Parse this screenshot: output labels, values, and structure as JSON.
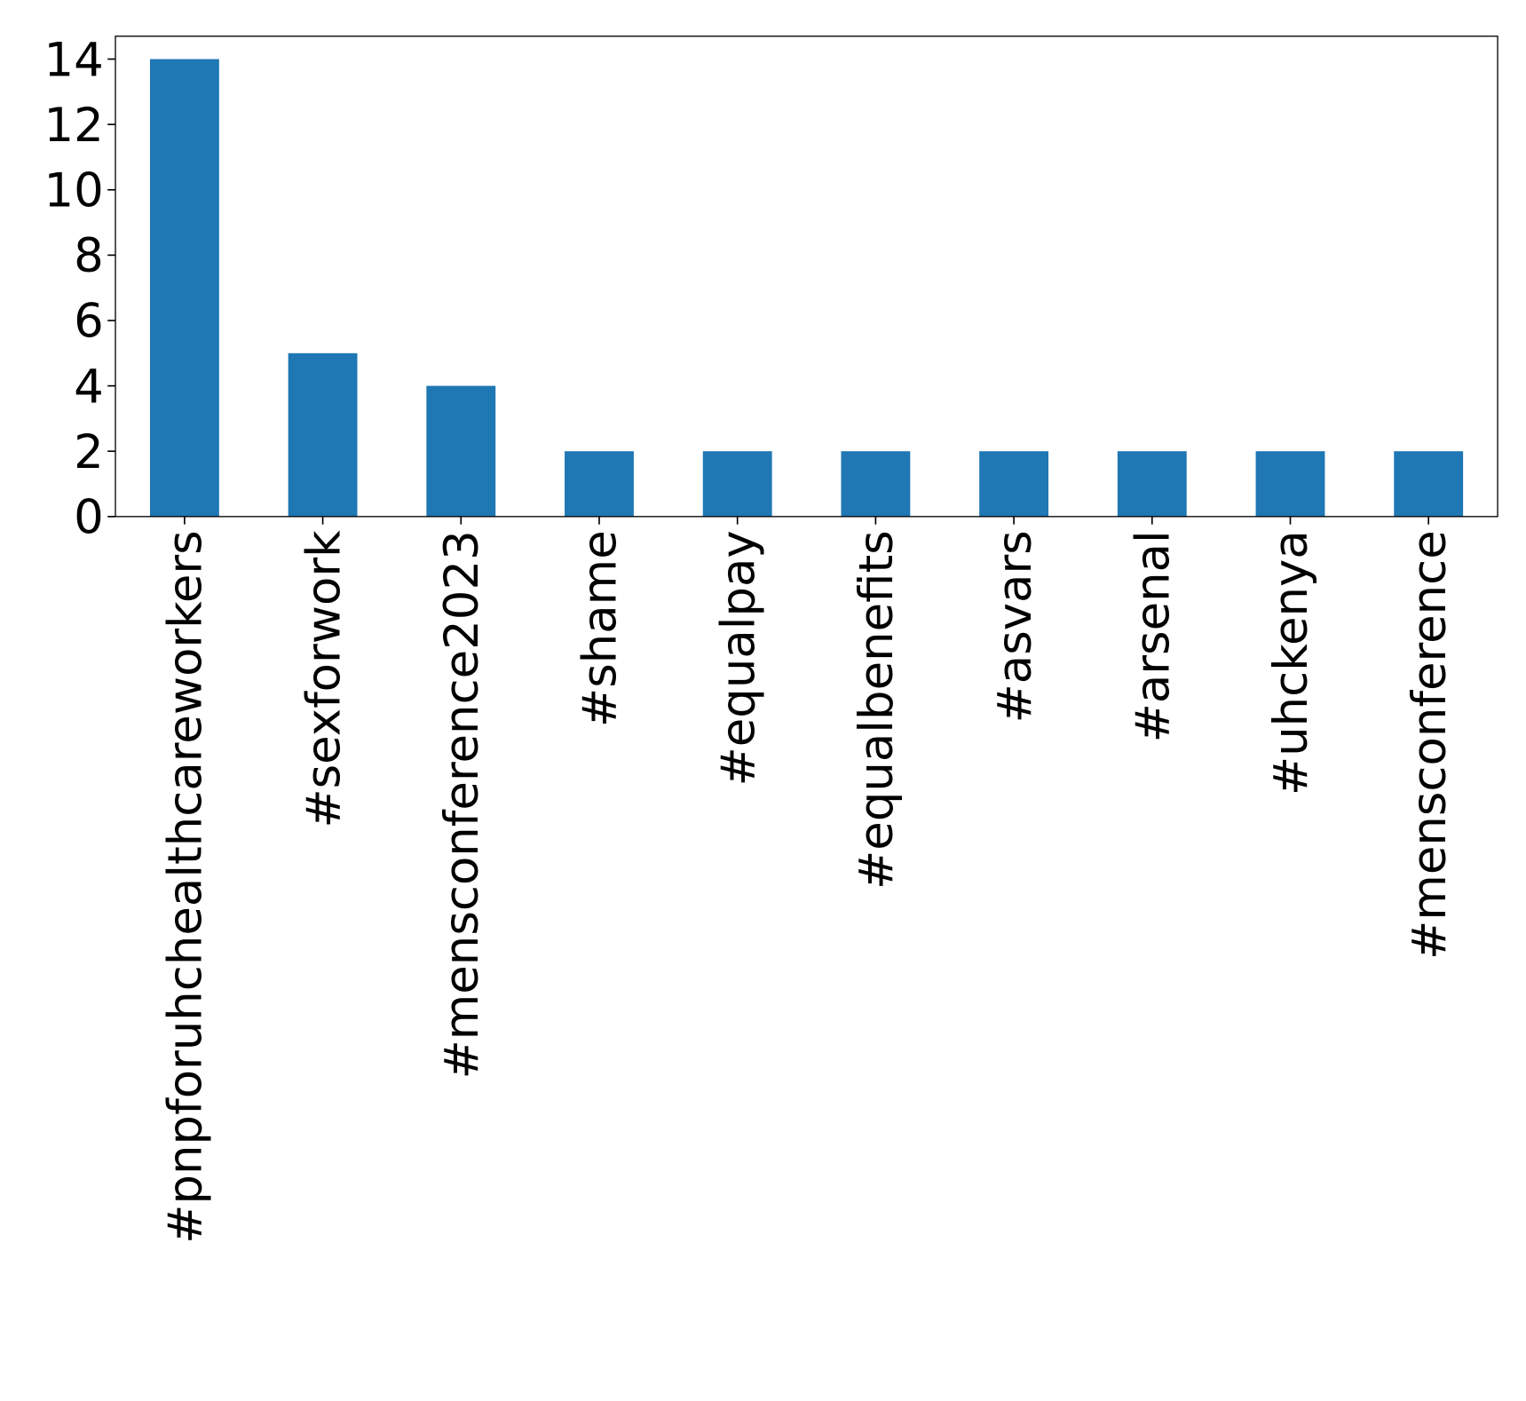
{
  "chart_data": {
    "type": "bar",
    "categories": [
      "#pnpforuhchealthcareworkers",
      "#sexforwork",
      "#mensconference2023",
      "#shame",
      "#equalpay",
      "#equalbenefits",
      "#asvars",
      "#arsenal",
      "#uhckenya",
      "#mensconference"
    ],
    "values": [
      14,
      5,
      4,
      2,
      2,
      2,
      2,
      2,
      2,
      2
    ],
    "color": "#1f77b4",
    "ylim": [
      0,
      14.7
    ],
    "yticks": [
      0,
      2,
      4,
      6,
      8,
      10,
      12,
      14
    ],
    "grid": false
  }
}
